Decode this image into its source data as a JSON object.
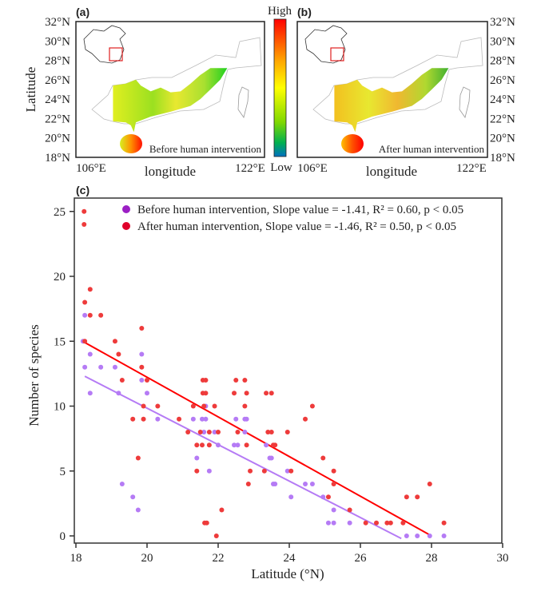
{
  "panels": {
    "a": {
      "label": "(a)",
      "caption": "Before human intervention"
    },
    "b": {
      "label": "(b)",
      "caption": "After human intervention"
    },
    "c": {
      "label": "(c)"
    }
  },
  "maps": {
    "ylabel": "Latitude",
    "xlabel": "longitude",
    "lat_ticks": [
      "32°N",
      "30°N",
      "28°N",
      "26°N",
      "24°N",
      "22°N",
      "20°N",
      "18°N"
    ],
    "lon_ticks": [
      "106°E",
      "122°E"
    ],
    "colorbar": {
      "high": "High",
      "low": "Low",
      "colors": [
        "#ff0000",
        "#ffa500",
        "#ffff00",
        "#7fd800",
        "#00b050",
        "#0070c0"
      ]
    }
  },
  "chart_data": {
    "type": "scatter",
    "xlabel": "Latitude (°N)",
    "ylabel": "Number of species",
    "xlim": [
      18,
      30
    ],
    "ylim": [
      0,
      25
    ],
    "xticks": [
      "18",
      "20",
      "22",
      "24",
      "26",
      "28",
      "30"
    ],
    "yticks": [
      "0",
      "5",
      "10",
      "15",
      "20",
      "25"
    ],
    "legend_position": "top",
    "series": [
      {
        "name": "Before human intervention, Slope value = -1.41, R² = 0.60, p < 0.05",
        "color": "#b57bf5",
        "legend_color": "#9b1fc4",
        "slope": -1.41,
        "r2": 0.6,
        "p": "< 0.05",
        "fit": [
          [
            18.25,
            12.3
          ],
          [
            27.15,
            -0.2
          ]
        ],
        "points": [
          [
            18.25,
            17
          ],
          [
            18.2,
            15
          ],
          [
            18.4,
            14
          ],
          [
            18.25,
            13
          ],
          [
            18.4,
            11
          ],
          [
            18.7,
            13
          ],
          [
            19.1,
            13
          ],
          [
            19.2,
            11
          ],
          [
            19.85,
            14
          ],
          [
            19.85,
            12
          ],
          [
            20,
            11
          ],
          [
            20.3,
            9
          ],
          [
            19.3,
            4
          ],
          [
            19.6,
            3
          ],
          [
            19.75,
            2
          ],
          [
            21.3,
            9
          ],
          [
            21.55,
            9
          ],
          [
            21.65,
            9
          ],
          [
            21.65,
            10
          ],
          [
            21.4,
            6
          ],
          [
            21.6,
            8
          ],
          [
            21.75,
            5
          ],
          [
            21.9,
            8
          ],
          [
            22,
            7
          ],
          [
            22.45,
            7
          ],
          [
            22.55,
            7
          ],
          [
            22.5,
            9
          ],
          [
            22.75,
            9
          ],
          [
            22.8,
            9
          ],
          [
            22.75,
            8
          ],
          [
            23.35,
            7
          ],
          [
            23.45,
            6
          ],
          [
            23.5,
            6
          ],
          [
            23.6,
            4
          ],
          [
            23.95,
            5
          ],
          [
            23.55,
            4
          ],
          [
            24.05,
            3
          ],
          [
            24.45,
            4
          ],
          [
            24.65,
            4
          ],
          [
            24.95,
            3
          ],
          [
            25.25,
            2
          ],
          [
            25.1,
            1
          ],
          [
            25.25,
            1
          ],
          [
            25.7,
            1
          ],
          [
            27.3,
            0
          ],
          [
            27.6,
            0
          ],
          [
            27.95,
            0
          ],
          [
            28.35,
            0
          ]
        ]
      },
      {
        "name": "After human intervention, Slope value = -1.46, R² = 0.50,  p < 0.05",
        "color": "#ee3b3b",
        "legend_color": "#e0002a",
        "slope": -1.46,
        "r2": 0.5,
        "p": "< 0.05",
        "fit": [
          [
            18.25,
            14.9
          ],
          [
            28,
            0
          ]
        ],
        "points": [
          [
            18.23,
            25
          ],
          [
            18.23,
            24
          ],
          [
            18.4,
            19
          ],
          [
            18.25,
            18
          ],
          [
            18.4,
            17
          ],
          [
            18.7,
            17
          ],
          [
            18.25,
            15
          ],
          [
            19.85,
            16
          ],
          [
            19.1,
            15
          ],
          [
            19.2,
            14
          ],
          [
            19.3,
            12
          ],
          [
            19.85,
            13
          ],
          [
            20,
            12
          ],
          [
            19.9,
            10
          ],
          [
            20.3,
            10
          ],
          [
            19.6,
            9
          ],
          [
            19.9,
            9
          ],
          [
            20.9,
            9
          ],
          [
            21.15,
            8
          ],
          [
            21.3,
            10
          ],
          [
            21.4,
            7
          ],
          [
            21.4,
            5
          ],
          [
            21.55,
            7
          ],
          [
            21.5,
            8
          ],
          [
            21.57,
            12
          ],
          [
            21.65,
            12
          ],
          [
            21.57,
            11
          ],
          [
            21.65,
            11
          ],
          [
            21.6,
            10
          ],
          [
            21.9,
            10
          ],
          [
            21.75,
            8
          ],
          [
            22,
            8
          ],
          [
            21.75,
            7
          ],
          [
            21.62,
            1
          ],
          [
            21.68,
            1
          ],
          [
            21.95,
            0
          ],
          [
            22.1,
            2
          ],
          [
            19.75,
            6
          ],
          [
            22.5,
            12
          ],
          [
            22.45,
            11
          ],
          [
            22.75,
            12
          ],
          [
            22.8,
            11
          ],
          [
            22.75,
            10
          ],
          [
            22.55,
            8
          ],
          [
            22.8,
            7
          ],
          [
            22.9,
            5
          ],
          [
            22.85,
            4
          ],
          [
            23.3,
            5
          ],
          [
            23.35,
            11
          ],
          [
            23.5,
            11
          ],
          [
            23.4,
            8
          ],
          [
            23.5,
            8
          ],
          [
            23.6,
            7
          ],
          [
            23.95,
            8
          ],
          [
            24.65,
            10
          ],
          [
            24.45,
            9
          ],
          [
            23.55,
            7
          ],
          [
            24.05,
            5
          ],
          [
            24.95,
            6
          ],
          [
            25.25,
            5
          ],
          [
            25.25,
            4
          ],
          [
            25.1,
            3
          ],
          [
            25.7,
            2
          ],
          [
            26.15,
            1
          ],
          [
            26.45,
            1
          ],
          [
            26.75,
            1
          ],
          [
            26.85,
            1
          ],
          [
            27.2,
            1
          ],
          [
            27.3,
            3
          ],
          [
            27.6,
            3
          ],
          [
            27.95,
            4
          ],
          [
            28.35,
            1
          ]
        ]
      }
    ]
  }
}
